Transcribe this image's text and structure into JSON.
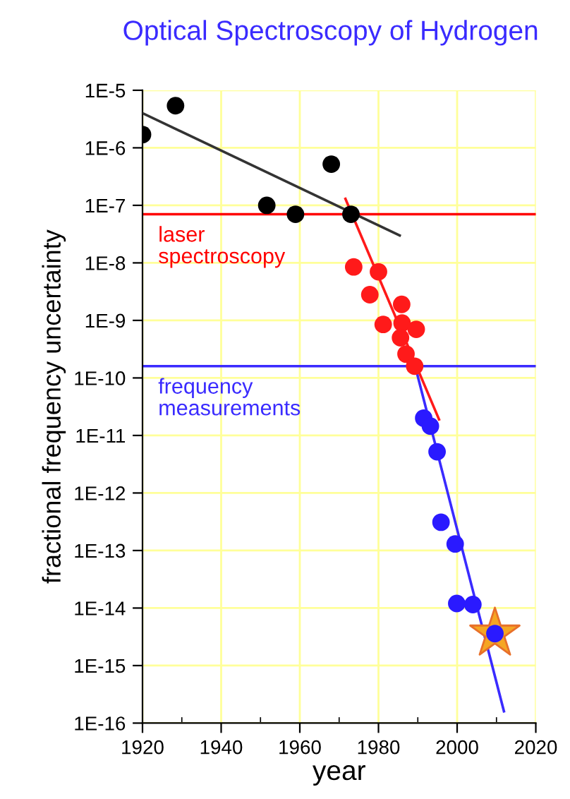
{
  "chart_data": {
    "type": "scatter",
    "title": "Optical Spectroscopy of Hydrogen",
    "xlabel": "year",
    "ylabel": "fractional frequency uncertainty",
    "log": "y",
    "grid": true,
    "marker": "circle",
    "xlim": [
      1920,
      2020
    ],
    "xticks": [
      1920,
      1940,
      1960,
      1980,
      2000,
      2020
    ],
    "ylim": [
      1e-16,
      1e-05
    ],
    "yticks": [
      {
        "value": 1e-16,
        "label": "1E-16"
      },
      {
        "value": 1e-15,
        "label": "1E-15"
      },
      {
        "value": 1e-14,
        "label": "1E-14"
      },
      {
        "value": 1e-13,
        "label": "1E-13"
      },
      {
        "value": 1e-12,
        "label": "1E-12"
      },
      {
        "value": 1e-11,
        "label": "1E-11"
      },
      {
        "value": 1e-10,
        "label": "1E-10"
      },
      {
        "value": 1e-09,
        "label": "1E-9"
      },
      {
        "value": 1e-08,
        "label": "1E-8"
      },
      {
        "value": 1e-07,
        "label": "1E-7"
      },
      {
        "value": 1e-06,
        "label": "1E-6"
      },
      {
        "value": 1e-05,
        "label": "1E-5"
      }
    ],
    "ref_lines": [
      {
        "axis": "y",
        "value": 7e-08,
        "label": "laser\nspectroscopy",
        "color": "#ff0000"
      },
      {
        "axis": "y",
        "value": 1.6e-10,
        "label": "frequency\nmeasurements",
        "color": "#3a2bff"
      }
    ],
    "series": [
      {
        "type": "line",
        "marker": "none",
        "color": "#333333",
        "x": [
          1920,
          1985.4
        ],
        "values": [
          4e-06,
          3e-08
        ]
      },
      {
        "type": "line",
        "marker": "none",
        "color": "#ff1a1a",
        "x": [
          1971.6,
          1995.4
        ],
        "values": [
          1.3e-07,
          1.9e-11
        ]
      },
      {
        "type": "line",
        "marker": "none",
        "color": "#3a2bff",
        "x": [
          1989.6,
          2011.9
        ],
        "values": [
          1.35e-10,
          1.6e-16
        ]
      },
      {
        "color": "#000000",
        "x": [
          1920,
          1928.4,
          1951.6,
          1958.9,
          1968,
          1973
        ],
        "values": [
          1.7e-06,
          5.4e-06,
          1e-07,
          7e-08,
          5.2e-07,
          7e-08
        ]
      },
      {
        "color": "#ff1a1a",
        "x": [
          1973.7,
          1980,
          1977.8,
          1985.9,
          1981.2,
          1986,
          1989.6,
          1985.6,
          1987,
          1989.2
        ],
        "values": [
          8.5e-09,
          7e-09,
          2.8e-09,
          1.9e-09,
          8.5e-10,
          9e-10,
          7e-10,
          5e-10,
          2.6e-10,
          1.6e-10
        ]
      },
      {
        "marker": "star",
        "color": "#f5a623",
        "x": [
          2009.6
        ],
        "values": [
          3.6e-15
        ]
      },
      {
        "color": "#2a1aff",
        "x": [
          1991.5,
          1993.2,
          1994.9,
          1995.9,
          1999.5,
          1999.9,
          2004,
          2009.6
        ],
        "values": [
          2e-11,
          1.45e-11,
          5.2e-12,
          3.1e-13,
          1.3e-13,
          1.2e-14,
          1.15e-14,
          3.6e-15
        ]
      }
    ]
  }
}
